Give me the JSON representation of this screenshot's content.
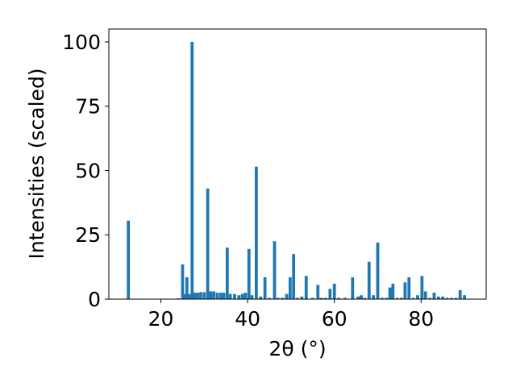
{
  "chart_data": {
    "type": "bar",
    "xlabel": "2θ (°)",
    "ylabel": "Intensities (scaled)",
    "xlim": [
      8,
      95
    ],
    "ylim": [
      0,
      105
    ],
    "xticks": [
      20,
      40,
      60,
      80
    ],
    "yticks": [
      0,
      25,
      50,
      75,
      100
    ],
    "grid": false,
    "bar_width": 0.7,
    "color": "#1f77b4",
    "x": [
      12.5,
      24.0,
      25.0,
      25.5,
      26.0,
      26.5,
      27.2,
      27.8,
      28.5,
      29.2,
      30.0,
      30.8,
      31.5,
      32.2,
      33.0,
      33.8,
      34.5,
      35.3,
      36.0,
      37.0,
      38.0,
      38.8,
      39.5,
      40.3,
      41.0,
      42.0,
      43.0,
      44.0,
      45.0,
      46.2,
      47.0,
      48.0,
      49.0,
      49.8,
      50.6,
      51.5,
      52.5,
      53.5,
      55.0,
      56.2,
      57.0,
      58.0,
      59.0,
      60.0,
      61.0,
      62.5,
      64.2,
      65.5,
      66.2,
      67.0,
      68.0,
      69.0,
      70.0,
      71.0,
      72.0,
      72.8,
      73.5,
      74.5,
      75.5,
      76.3,
      77.2,
      78.2,
      79.2,
      80.2,
      81.0,
      82.0,
      83.0,
      84.0,
      85.0,
      86.0,
      87.0,
      88.0,
      89.0,
      90.0
    ],
    "values": [
      30.5,
      0.3,
      13.5,
      2.0,
      8.5,
      2.0,
      100.0,
      2.5,
      2.5,
      2.7,
      2.7,
      43.0,
      3.0,
      3.0,
      2.5,
      2.5,
      2.5,
      20.0,
      2.0,
      2.0,
      1.5,
      2.0,
      2.5,
      19.5,
      1.5,
      51.5,
      1.0,
      8.5,
      0.5,
      22.5,
      0.5,
      0.5,
      2.0,
      8.5,
      17.5,
      0.5,
      1.0,
      9.0,
      0.5,
      5.5,
      0.5,
      0.5,
      4.0,
      6.0,
      0.5,
      0.5,
      8.5,
      1.0,
      1.5,
      0.5,
      14.5,
      1.5,
      22.0,
      0.5,
      0.5,
      4.5,
      6.0,
      0.5,
      0.5,
      6.5,
      8.5,
      0.5,
      1.5,
      9.0,
      3.0,
      0.5,
      2.5,
      1.0,
      1.0,
      0.5,
      0.5,
      0.5,
      3.5,
      1.5
    ]
  }
}
